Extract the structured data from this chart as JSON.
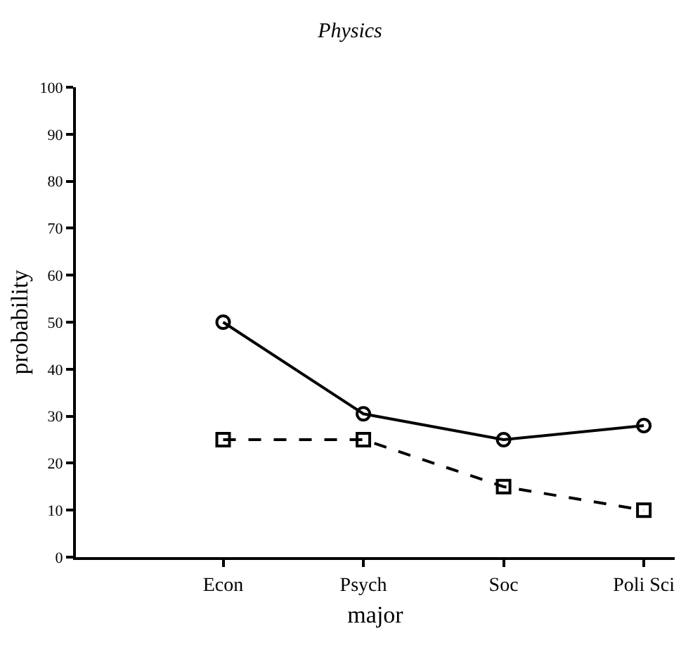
{
  "chart_data": {
    "type": "line",
    "title": "Physics",
    "xlabel": "major",
    "ylabel": "probability",
    "categories": [
      "Econ",
      "Psych",
      "Soc",
      "Poli Sci"
    ],
    "series": [
      {
        "color": "#000000",
        "values": [
          50,
          30.5,
          25,
          28
        ],
        "marker": "circle",
        "line_style": "solid"
      },
      {
        "color": "#000000",
        "values": [
          25,
          25,
          15,
          10
        ],
        "marker": "square",
        "line_style": "dashed"
      }
    ],
    "ylim": [
      0,
      100
    ],
    "yticks": [
      0,
      10,
      20,
      30,
      40,
      50,
      60,
      70,
      80,
      90,
      100
    ],
    "grid": false
  }
}
